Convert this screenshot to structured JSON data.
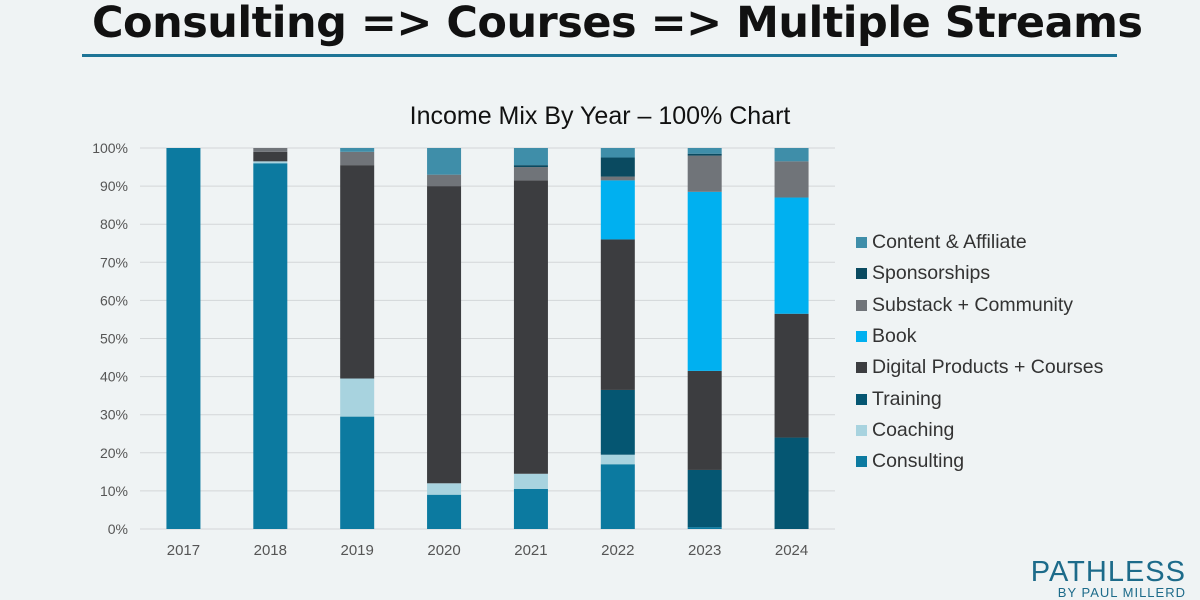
{
  "page": {
    "title": "Consulting => Courses => Multiple Streams",
    "logo_main": "PATHLESS",
    "logo_sub": "BY PAUL MILLERD"
  },
  "colors": {
    "accent_rule": "#1d7496",
    "logo": "#1d6b8a"
  },
  "chart_data": {
    "type": "bar",
    "stacked": true,
    "title": "Income Mix By Year – 100% Chart",
    "xlabel": "",
    "ylabel": "",
    "ylim": [
      0,
      100
    ],
    "y_ticks": [
      "0%",
      "10%",
      "20%",
      "30%",
      "40%",
      "50%",
      "60%",
      "70%",
      "80%",
      "90%",
      "100%"
    ],
    "categories": [
      "2017",
      "2018",
      "2019",
      "2020",
      "2021",
      "2022",
      "2023",
      "2024"
    ],
    "grid": true,
    "legend_position": "right",
    "series": [
      {
        "name": "Consulting",
        "color": "#0c7aa0",
        "values": [
          100,
          96,
          29.5,
          9,
          10.5,
          17,
          0.5,
          0
        ]
      },
      {
        "name": "Coaching",
        "color": "#a8d3df",
        "values": [
          0,
          0.5,
          10,
          3,
          4,
          2.5,
          0,
          0
        ]
      },
      {
        "name": "Training",
        "color": "#055672",
        "values": [
          0,
          0,
          0,
          0,
          0,
          17,
          15,
          24
        ]
      },
      {
        "name": "Digital Products + Courses",
        "color": "#3c3d40",
        "values": [
          0,
          2.5,
          56,
          78,
          77,
          39.5,
          26,
          32.5
        ]
      },
      {
        "name": "Book",
        "color": "#00b0f0",
        "values": [
          0,
          0,
          0,
          0,
          0,
          15.5,
          47,
          30.5
        ]
      },
      {
        "name": "Substack + Community",
        "color": "#707479",
        "values": [
          0,
          1,
          3.5,
          3,
          3.5,
          1,
          9.5,
          9.5
        ]
      },
      {
        "name": "Sponsorships",
        "color": "#0a4a60",
        "values": [
          0,
          0,
          0,
          0,
          0.5,
          5,
          0.5,
          0
        ]
      },
      {
        "name": "Content & Affiliate",
        "color": "#3f8ea9",
        "values": [
          0,
          0,
          1,
          7,
          4.5,
          2.5,
          1.5,
          3.5
        ]
      }
    ]
  }
}
